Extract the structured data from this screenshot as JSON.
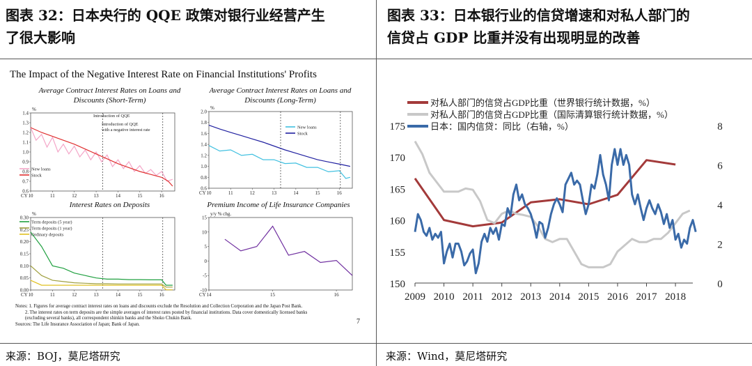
{
  "header_left": {
    "line1": "图表 32：日本央行的 QQE 政策对银行业经营产生",
    "line2": "了很大影响"
  },
  "header_right": {
    "line1": "图表  33：日本银行业的信贷增速和对私人部门的",
    "line2": "信贷占 GDP 比重并没有出现明显的改善"
  },
  "source_left": "来源：BOJ，莫尼塔研究",
  "source_right": "来源：Wind，莫尼塔研究",
  "left_panel": {
    "title": "The Impact of the Negative Interest Rate on Financial Institutions' Profits",
    "notes": [
      "Notes: 1. Figures for average contract interest rates on loans and discounts exclude the Resolution and Collection Corporation and the Japan Post Bank.",
      "2. The interest rates on term deposits are the simple averages of interest rates posted by financial institutions. Data cover domestically licensed banks",
      "(excluding several banks), all correspondent shinkin banks and the Shoko Chukin Bank.",
      "Sources: The Life Insurance Association of Japan; Bank of Japan."
    ],
    "page_number": "7"
  },
  "chart_data": [
    {
      "type": "line",
      "title": "Average Contract Interest Rates on Loans and Discounts (Short-Term)",
      "ylabel": "%",
      "xlabel": "CY",
      "x_ticks": [
        "10",
        "11",
        "12",
        "13",
        "14",
        "15",
        "16"
      ],
      "y_ticks": [
        "0.6",
        "0.7",
        "0.8",
        "0.9",
        "1.0",
        "1.1",
        "1.2",
        "1.3",
        "1.4"
      ],
      "ylim": [
        0.6,
        1.4
      ],
      "xlim": [
        2010,
        2016.6
      ],
      "annotations": [
        "Introduction of QQE",
        "Introduction of QQE with a negative interest rate"
      ],
      "vlines": [
        2013.3,
        2016.05
      ],
      "legend": "bottom-left",
      "series": [
        {
          "name": "New loans",
          "color": "#f4a6c8",
          "x": [
            2010,
            2010.25,
            2010.5,
            2010.75,
            2011,
            2011.25,
            2011.5,
            2011.75,
            2012,
            2012.25,
            2012.5,
            2012.75,
            2013,
            2013.25,
            2013.5,
            2013.75,
            2014,
            2014.25,
            2014.5,
            2014.75,
            2015,
            2015.25,
            2015.5,
            2015.75,
            2016,
            2016.25,
            2016.5
          ],
          "values": [
            1.25,
            1.12,
            1.18,
            1.05,
            1.15,
            1.0,
            1.08,
            0.98,
            1.06,
            0.95,
            1.02,
            0.92,
            1.0,
            0.9,
            0.97,
            0.85,
            0.92,
            0.83,
            0.9,
            0.8,
            0.86,
            0.78,
            0.82,
            0.76,
            0.8,
            0.7,
            0.72
          ]
        },
        {
          "name": "Stock",
          "color": "#e03030",
          "x": [
            2010,
            2010.5,
            2011,
            2011.5,
            2012,
            2012.5,
            2013,
            2013.5,
            2014,
            2014.5,
            2015,
            2015.5,
            2016,
            2016.3,
            2016.5
          ],
          "values": [
            1.25,
            1.2,
            1.16,
            1.12,
            1.08,
            1.03,
            0.98,
            0.93,
            0.88,
            0.84,
            0.8,
            0.77,
            0.74,
            0.7,
            0.65
          ]
        }
      ]
    },
    {
      "type": "line",
      "title": "Average Contract Interest Rates on Loans and Discounts (Long-Term)",
      "ylabel": "%",
      "xlabel": "CY",
      "x_ticks": [
        "10",
        "11",
        "12",
        "13",
        "14",
        "15",
        "16"
      ],
      "y_ticks": [
        "0.6",
        "0.8",
        "1.0",
        "1.2",
        "1.4",
        "1.6",
        "1.8",
        "2.0"
      ],
      "ylim": [
        0.6,
        2.0
      ],
      "xlim": [
        2010,
        2016.6
      ],
      "vlines": [
        2013.3,
        2016.05
      ],
      "legend": "top-right",
      "series": [
        {
          "name": "New loans",
          "color": "#40c0e0",
          "x": [
            2010,
            2010.5,
            2011,
            2011.5,
            2012,
            2012.5,
            2013,
            2013.5,
            2014,
            2014.5,
            2015,
            2015.5,
            2016,
            2016.3,
            2016.5
          ],
          "values": [
            1.38,
            1.28,
            1.3,
            1.2,
            1.22,
            1.12,
            1.12,
            1.05,
            1.06,
            0.98,
            0.98,
            0.9,
            0.92,
            0.78,
            0.8
          ]
        },
        {
          "name": "Stock",
          "color": "#2020a0",
          "x": [
            2010,
            2010.5,
            2011,
            2011.5,
            2012,
            2012.5,
            2013,
            2013.5,
            2014,
            2014.5,
            2015,
            2015.5,
            2016,
            2016.5
          ],
          "values": [
            1.75,
            1.68,
            1.62,
            1.56,
            1.5,
            1.44,
            1.37,
            1.3,
            1.24,
            1.18,
            1.12,
            1.08,
            1.04,
            1.0
          ]
        }
      ]
    },
    {
      "type": "line",
      "title": "Interest Rates on Deposits",
      "ylabel": "%",
      "xlabel": "CY",
      "x_ticks": [
        "10",
        "11",
        "12",
        "13",
        "14",
        "15",
        "16"
      ],
      "y_ticks": [
        "0.00",
        "0.05",
        "0.10",
        "0.15",
        "0.20",
        "0.25",
        "0.30"
      ],
      "ylim": [
        0.0,
        0.3
      ],
      "xlim": [
        2010,
        2016.6
      ],
      "vlines": [
        2013.3,
        2016.05
      ],
      "legend": "top-left",
      "series": [
        {
          "name": "Term deposits (5 year)",
          "color": "#20a040",
          "x": [
            2010,
            2010.5,
            2011,
            2011.5,
            2012,
            2012.5,
            2013,
            2013.5,
            2014,
            2014.5,
            2015,
            2015.5,
            2016,
            2016.2,
            2016.5
          ],
          "values": [
            0.24,
            0.18,
            0.1,
            0.09,
            0.07,
            0.06,
            0.05,
            0.045,
            0.045,
            0.043,
            0.043,
            0.042,
            0.042,
            0.02,
            0.02
          ]
        },
        {
          "name": "Term deposits (1 year)",
          "color": "#a0a040",
          "x": [
            2010,
            2010.5,
            2011,
            2011.5,
            2012,
            2012.5,
            2013,
            2013.5,
            2014,
            2014.5,
            2015,
            2015.5,
            2016,
            2016.2,
            2016.5
          ],
          "values": [
            0.1,
            0.06,
            0.04,
            0.035,
            0.03,
            0.028,
            0.026,
            0.026,
            0.025,
            0.025,
            0.025,
            0.025,
            0.025,
            0.012,
            0.012
          ]
        },
        {
          "name": "Ordinary deposits",
          "color": "#e0c020",
          "x": [
            2010,
            2010.5,
            2011,
            2012,
            2013,
            2014,
            2015,
            2016,
            2016.2,
            2016.5
          ],
          "values": [
            0.04,
            0.02,
            0.02,
            0.02,
            0.02,
            0.02,
            0.02,
            0.02,
            0.001,
            0.001
          ]
        }
      ]
    },
    {
      "type": "line",
      "title": "Premium Income of Life Insurance Companies",
      "ylabel": "y/y % chg.",
      "xlabel": "CY",
      "x_ticks": [
        "14",
        "15",
        "16"
      ],
      "y_ticks": [
        "-10",
        "-5",
        "0",
        "5",
        "10",
        "15"
      ],
      "ylim": [
        -10,
        15
      ],
      "xlim": [
        2014,
        2016.25
      ],
      "series": [
        {
          "name": "",
          "color": "#7030a0",
          "x": [
            2014.25,
            2014.5,
            2014.75,
            2015,
            2015.25,
            2015.5,
            2015.75,
            2016,
            2016.25
          ],
          "values": [
            7.5,
            3.5,
            5,
            12,
            2,
            3.3,
            -0.5,
            0.2,
            -5
          ]
        }
      ]
    },
    {
      "type": "line",
      "title": "",
      "xlabel": "",
      "x_ticks": [
        "2009",
        "2010",
        "2011",
        "2012",
        "2013",
        "2014",
        "2015",
        "2016",
        "2017",
        "2018"
      ],
      "xlim": [
        2009,
        2018.6
      ],
      "ylim": [
        150,
        175
      ],
      "y_ticks": [
        "150",
        "155",
        "160",
        "165",
        "170",
        "175"
      ],
      "y2lim": [
        0,
        8
      ],
      "y2_ticks": [
        "0",
        "2",
        "4",
        "6",
        "8"
      ],
      "legend": "top-left",
      "series": [
        {
          "name": "对私人部门的信贷占GDP比重（世界银行统计数据，%）",
          "color": "#a33a3a",
          "axis": "left",
          "x": [
            2009,
            2010,
            2011,
            2012,
            2013,
            2014,
            2015,
            2016,
            2017,
            2018
          ],
          "values": [
            166.6,
            160,
            159,
            159.6,
            162.8,
            163.3,
            162.5,
            164,
            169.5,
            168.8
          ]
        },
        {
          "name": "对私人部门的信贷占GDP比重（国际清算银行统计数据，%）",
          "color": "#c8c8c8",
          "axis": "left",
          "x": [
            2009,
            2009.25,
            2009.5,
            2009.75,
            2010,
            2010.25,
            2010.5,
            2010.75,
            2011,
            2011.25,
            2011.5,
            2011.75,
            2012,
            2012.25,
            2012.5,
            2012.75,
            2013,
            2013.25,
            2013.5,
            2013.75,
            2014,
            2014.25,
            2014.5,
            2014.75,
            2015,
            2015.25,
            2015.5,
            2015.75,
            2016,
            2016.25,
            2016.5,
            2016.75,
            2017,
            2017.25,
            2017.5,
            2017.75,
            2018,
            2018.25,
            2018.5
          ],
          "values": [
            172.5,
            170.5,
            167.5,
            166,
            164.5,
            164.5,
            164.5,
            165,
            164.8,
            163,
            160,
            159.5,
            161,
            161.5,
            161,
            160.8,
            160.5,
            159,
            157,
            156.5,
            157,
            157,
            155,
            153,
            152.5,
            152.5,
            152.5,
            153,
            155,
            156,
            157,
            156.5,
            156.5,
            157,
            157,
            158,
            159.5,
            161,
            161.5
          ]
        },
        {
          "name": "日本：国内信贷：同比（右轴，%）",
          "color": "#3a6aa8",
          "axis": "right",
          "x": [
            2009,
            2009.1,
            2009.2,
            2009.3,
            2009.4,
            2009.5,
            2009.6,
            2009.7,
            2009.8,
            2009.9,
            2010,
            2010.1,
            2010.2,
            2010.3,
            2010.4,
            2010.5,
            2010.6,
            2010.7,
            2010.8,
            2010.9,
            2011,
            2011.1,
            2011.2,
            2011.3,
            2011.4,
            2011.5,
            2011.6,
            2011.7,
            2011.8,
            2011.9,
            2012,
            2012.1,
            2012.2,
            2012.3,
            2012.4,
            2012.5,
            2012.6,
            2012.7,
            2012.8,
            2012.9,
            2013,
            2013.1,
            2013.2,
            2013.3,
            2013.4,
            2013.5,
            2013.6,
            2013.7,
            2013.8,
            2013.9,
            2014,
            2014.1,
            2014.2,
            2014.3,
            2014.4,
            2014.5,
            2014.6,
            2014.7,
            2014.8,
            2014.9,
            2015,
            2015.1,
            2015.2,
            2015.3,
            2015.4,
            2015.5,
            2015.6,
            2015.7,
            2015.8,
            2015.9,
            2016,
            2016.1,
            2016.2,
            2016.3,
            2016.4,
            2016.5,
            2016.6,
            2016.7,
            2016.8,
            2016.9,
            2017,
            2017.1,
            2017.2,
            2017.3,
            2017.4,
            2017.5,
            2017.6,
            2017.7,
            2017.8,
            2017.9,
            2018,
            2018.1,
            2018.2,
            2018.3,
            2018.4,
            2018.5,
            2018.6,
            2018.7
          ],
          "values": [
            2.6,
            3.5,
            3.2,
            2.6,
            2.4,
            2.8,
            2.2,
            2.5,
            2.3,
            2.6,
            1.0,
            1.6,
            2.0,
            1.3,
            2.0,
            2.0,
            1.6,
            0.9,
            1.1,
            1.5,
            1.7,
            0.5,
            1.0,
            2.1,
            2.5,
            2.1,
            2.8,
            2.5,
            2.8,
            2.2,
            3.0,
            2.9,
            3.8,
            3.4,
            4.5,
            5.0,
            4.2,
            4.5,
            4.0,
            3.8,
            3.5,
            3.0,
            2.3,
            3.1,
            3.0,
            2.3,
            2.8,
            3.5,
            4.0,
            4.3,
            4.0,
            3.6,
            5.0,
            5.3,
            5.6,
            5.0,
            5.2,
            5.0,
            4.2,
            3.5,
            4.0,
            5.0,
            4.8,
            5.5,
            6.5,
            5.5,
            5.0,
            4.2,
            6.0,
            6.8,
            6.0,
            6.8,
            6.0,
            6.5,
            6.0,
            4.5,
            4.0,
            4.5,
            3.8,
            3.2,
            3.8,
            4.2,
            3.8,
            3.5,
            4.0,
            3.6,
            3.0,
            3.5,
            2.8,
            3.2,
            2.2,
            2.5,
            1.8,
            2.2,
            2.0,
            2.8,
            3.2,
            2.6
          ]
        }
      ]
    }
  ]
}
